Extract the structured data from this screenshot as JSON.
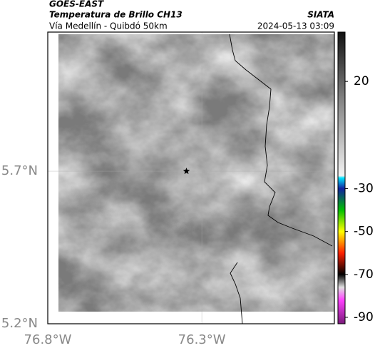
{
  "chart_data": {
    "type": "map",
    "title": "GOES-EAST",
    "subtitle": "Temperatura de Brillo CH13",
    "caption": "Vía Medellín - Quibdó 50km",
    "source": "SIATA",
    "timestamp": "2024-05-13 03:09",
    "xlim": [
      -76.8,
      -75.87
    ],
    "ylim": [
      5.2,
      6.156
    ],
    "xticks": [
      {
        "value": -76.8,
        "label": "76.8°W"
      },
      {
        "value": -76.3,
        "label": "76.3°W"
      }
    ],
    "yticks": [
      {
        "value": 5.2,
        "label": "5.2°N"
      },
      {
        "value": 5.7,
        "label": "5.7°N"
      }
    ],
    "grid": true,
    "marker": {
      "lon": -76.35,
      "lat": 5.7
    },
    "clim": [
      -93,
      43
    ],
    "cticks": [
      20,
      -30,
      -50,
      -70,
      -90
    ],
    "colormap": [
      {
        "value": 43,
        "color": "#111111"
      },
      {
        "value": 10,
        "color": "#888888"
      },
      {
        "value": -24,
        "color": "#f2f2f2"
      },
      {
        "value": -25,
        "color": "#00e5ff"
      },
      {
        "value": -30,
        "color": "#1020a0"
      },
      {
        "value": -40,
        "color": "#00c000"
      },
      {
        "value": -50,
        "color": "#ffff00"
      },
      {
        "value": -60,
        "color": "#ff2000"
      },
      {
        "value": -70,
        "color": "#000000"
      },
      {
        "value": -76,
        "color": "#e0e0e0"
      },
      {
        "value": -82,
        "color": "#ff40ff"
      },
      {
        "value": -93,
        "color": "#7a1a7a"
      }
    ]
  }
}
